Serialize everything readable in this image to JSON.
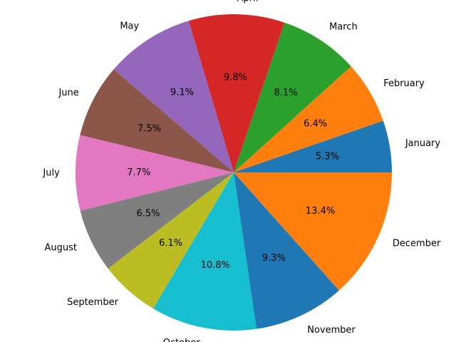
{
  "chart_data": {
    "type": "pie",
    "title": "",
    "start_angle_deg": 0,
    "direction": "counterclockwise",
    "categories": [
      "January",
      "February",
      "March",
      "April",
      "May",
      "June",
      "July",
      "August",
      "September",
      "October",
      "November",
      "December"
    ],
    "values": [
      5.3,
      6.4,
      8.1,
      9.8,
      9.1,
      7.5,
      7.7,
      6.5,
      6.1,
      10.8,
      9.3,
      13.4
    ],
    "value_labels": [
      "5.3%",
      "6.4%",
      "8.1%",
      "9.8%",
      "9.1%",
      "7.5%",
      "7.7%",
      "6.5%",
      "6.1%",
      "10.8%",
      "9.3%",
      "13.4%"
    ],
    "colors": [
      "#1f77b4",
      "#ff7f0e",
      "#2ca02c",
      "#d62728",
      "#9467bd",
      "#8c564b",
      "#e377c2",
      "#7f7f7f",
      "#bcbd22",
      "#17becf",
      "#1f77b4",
      "#ff7f0e"
    ]
  }
}
